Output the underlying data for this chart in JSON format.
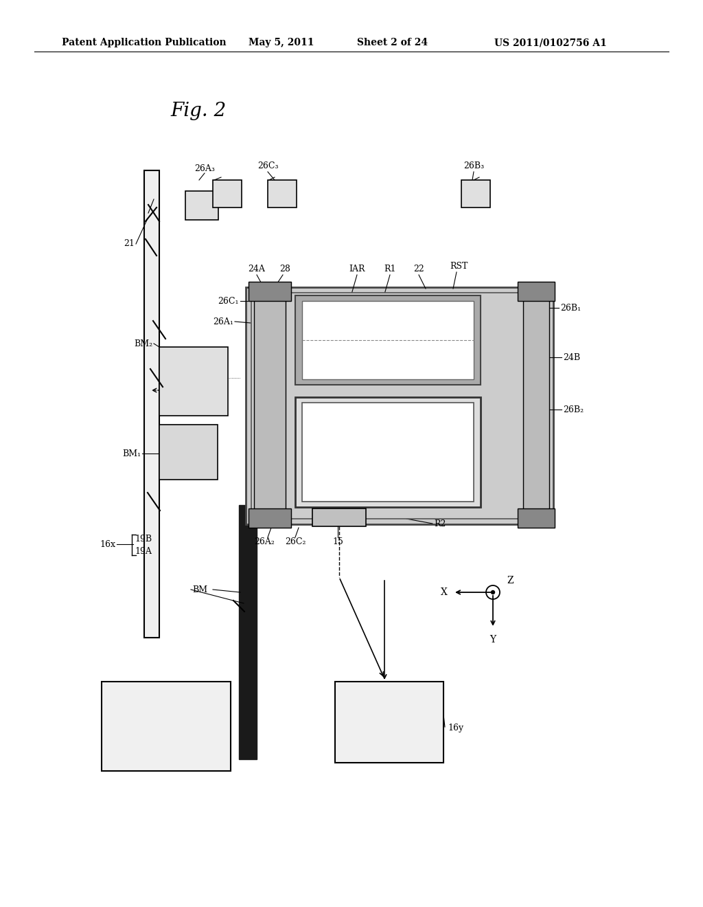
{
  "bg_color": "#ffffff",
  "header_text": "Patent Application Publication",
  "header_date": "May 5, 2011",
  "header_sheet": "Sheet 2 of 24",
  "header_patent": "US 2011/0102756 A1",
  "fig_label": "Fig. 2"
}
